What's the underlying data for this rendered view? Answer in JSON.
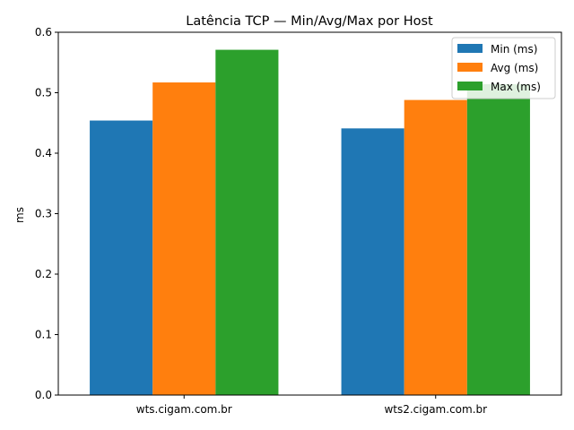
{
  "chart_data": {
    "type": "bar",
    "title": "Latência TCP — Min/Avg/Max por Host",
    "xlabel": "",
    "ylabel": "ms",
    "categories": [
      "wts.cigam.com.br",
      "wts2.cigam.com.br"
    ],
    "series": [
      {
        "name": "Min (ms)",
        "values": [
          0.454,
          0.441
        ],
        "color": "#1f77b4"
      },
      {
        "name": "Avg (ms)",
        "values": [
          0.517,
          0.488
        ],
        "color": "#ff7f0e"
      },
      {
        "name": "Max (ms)",
        "values": [
          0.571,
          0.514
        ],
        "color": "#2ca02c"
      }
    ],
    "ylim": [
      0,
      0.6
    ],
    "yticks": [
      "0.0",
      "0.1",
      "0.2",
      "0.3",
      "0.4",
      "0.5",
      "0.6"
    ],
    "grid": false,
    "legend": "top-right"
  }
}
